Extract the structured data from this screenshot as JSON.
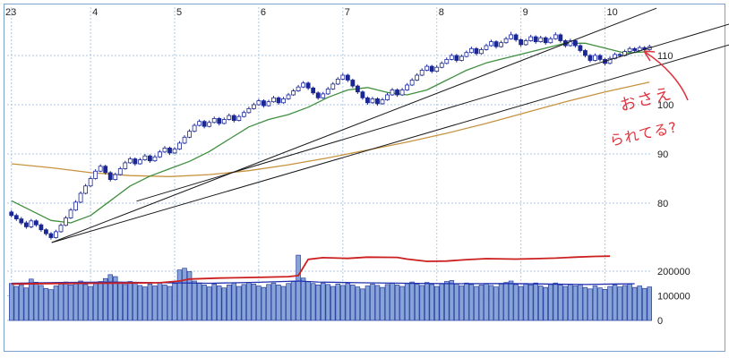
{
  "chart_data": {
    "type": "candlestick_with_volume",
    "title": "",
    "x_axis": {
      "labels": [
        "23",
        "4",
        "5",
        "6",
        "7",
        "8",
        "9",
        "10"
      ],
      "positions": [
        0,
        16,
        33,
        50,
        67,
        86,
        103,
        120
      ]
    },
    "price_axis": {
      "ticks": [
        110,
        100,
        90,
        80
      ],
      "min": 68.5,
      "max": 119.8
    },
    "volume_axis": {
      "ticks": [
        200000,
        100000,
        0
      ],
      "max": 290000
    },
    "candles": [
      [
        78.2,
        78.6,
        77.1,
        77.5
      ],
      [
        77.5,
        77.9,
        76.4,
        76.8
      ],
      [
        76.8,
        77.2,
        75.6,
        76.0
      ],
      [
        76.0,
        76.4,
        74.8,
        75.2
      ],
      [
        75.2,
        76.8,
        74.9,
        76.4
      ],
      [
        76.4,
        76.7,
        75.2,
        75.6
      ],
      [
        75.6,
        75.9,
        74.2,
        74.6
      ],
      [
        74.6,
        74.9,
        73.4,
        73.8
      ],
      [
        73.8,
        74.1,
        72.6,
        73.0
      ],
      [
        73.0,
        74.6,
        72.8,
        74.2
      ],
      [
        74.2,
        75.9,
        74.0,
        75.5
      ],
      [
        75.5,
        77.4,
        75.3,
        77.0
      ],
      [
        77.0,
        79.0,
        76.8,
        78.6
      ],
      [
        78.6,
        80.6,
        78.4,
        80.2
      ],
      [
        80.2,
        82.4,
        80.0,
        82.0
      ],
      [
        82.0,
        83.9,
        81.8,
        83.5
      ],
      [
        83.5,
        85.4,
        83.3,
        85.0
      ],
      [
        85.0,
        86.9,
        84.8,
        86.5
      ],
      [
        86.5,
        87.9,
        86.3,
        87.5
      ],
      [
        87.5,
        87.8,
        85.8,
        86.2
      ],
      [
        86.2,
        86.5,
        84.4,
        84.8
      ],
      [
        84.8,
        86.2,
        84.6,
        85.8
      ],
      [
        85.8,
        87.4,
        85.6,
        87.0
      ],
      [
        87.0,
        88.6,
        86.8,
        88.2
      ],
      [
        88.2,
        89.4,
        88.0,
        89.0
      ],
      [
        89.0,
        89.3,
        87.6,
        88.0
      ],
      [
        88.0,
        89.2,
        87.8,
        88.8
      ],
      [
        88.8,
        90.0,
        88.6,
        89.6
      ],
      [
        89.6,
        89.9,
        88.2,
        88.6
      ],
      [
        88.6,
        89.8,
        88.4,
        89.4
      ],
      [
        89.4,
        90.8,
        89.2,
        90.4
      ],
      [
        90.4,
        91.6,
        90.2,
        91.2
      ],
      [
        91.2,
        91.5,
        89.8,
        90.2
      ],
      [
        90.2,
        91.4,
        90.0,
        91.0
      ],
      [
        91.0,
        92.6,
        90.8,
        92.2
      ],
      [
        92.2,
        93.8,
        92.0,
        93.4
      ],
      [
        93.4,
        95.0,
        93.2,
        94.6
      ],
      [
        94.6,
        96.2,
        94.4,
        95.8
      ],
      [
        95.8,
        97.0,
        95.6,
        96.6
      ],
      [
        96.6,
        96.9,
        95.2,
        95.6
      ],
      [
        95.6,
        96.8,
        95.4,
        96.4
      ],
      [
        96.4,
        97.6,
        96.2,
        97.2
      ],
      [
        97.2,
        97.5,
        95.8,
        96.2
      ],
      [
        96.2,
        97.4,
        96.0,
        97.0
      ],
      [
        97.0,
        98.2,
        96.8,
        97.8
      ],
      [
        97.8,
        98.1,
        96.4,
        96.8
      ],
      [
        96.8,
        98.0,
        96.6,
        97.6
      ],
      [
        97.6,
        98.8,
        97.4,
        98.4
      ],
      [
        98.4,
        99.6,
        98.2,
        99.2
      ],
      [
        99.2,
        100.4,
        99.0,
        100.0
      ],
      [
        100.0,
        101.2,
        99.8,
        100.8
      ],
      [
        100.8,
        101.1,
        99.4,
        99.8
      ],
      [
        99.8,
        101.0,
        99.6,
        100.6
      ],
      [
        100.6,
        101.8,
        100.4,
        101.4
      ],
      [
        101.4,
        101.7,
        100.0,
        100.4
      ],
      [
        100.4,
        101.6,
        100.2,
        101.2
      ],
      [
        101.2,
        102.4,
        101.0,
        102.0
      ],
      [
        102.0,
        103.2,
        101.8,
        102.8
      ],
      [
        102.8,
        104.0,
        102.6,
        103.6
      ],
      [
        103.6,
        104.8,
        103.4,
        104.4
      ],
      [
        104.4,
        104.7,
        103.0,
        103.4
      ],
      [
        103.4,
        103.7,
        102.0,
        102.4
      ],
      [
        102.4,
        102.7,
        101.0,
        101.4
      ],
      [
        101.4,
        102.6,
        101.2,
        102.2
      ],
      [
        102.2,
        103.6,
        102.0,
        103.2
      ],
      [
        103.2,
        104.6,
        103.0,
        104.2
      ],
      [
        104.2,
        105.6,
        104.0,
        105.2
      ],
      [
        105.2,
        106.4,
        105.0,
        106.0
      ],
      [
        106.0,
        106.3,
        104.6,
        105.0
      ],
      [
        105.0,
        105.3,
        103.4,
        103.8
      ],
      [
        103.8,
        104.1,
        102.2,
        102.6
      ],
      [
        102.6,
        102.9,
        101.0,
        101.4
      ],
      [
        101.4,
        101.7,
        100.0,
        100.4
      ],
      [
        100.4,
        101.6,
        100.2,
        101.2
      ],
      [
        101.2,
        101.5,
        99.8,
        100.2
      ],
      [
        100.2,
        101.4,
        100.0,
        101.0
      ],
      [
        101.0,
        102.4,
        100.8,
        102.0
      ],
      [
        102.0,
        103.4,
        101.8,
        103.0
      ],
      [
        103.0,
        103.3,
        101.6,
        102.0
      ],
      [
        102.0,
        103.4,
        101.8,
        103.0
      ],
      [
        103.0,
        104.4,
        102.8,
        104.0
      ],
      [
        104.0,
        105.4,
        103.8,
        105.0
      ],
      [
        105.0,
        106.4,
        104.8,
        106.0
      ],
      [
        106.0,
        107.4,
        105.8,
        107.0
      ],
      [
        107.0,
        108.2,
        106.8,
        107.8
      ],
      [
        107.8,
        108.1,
        106.4,
        106.8
      ],
      [
        106.8,
        108.0,
        106.6,
        107.6
      ],
      [
        107.6,
        108.8,
        107.4,
        108.4
      ],
      [
        108.4,
        109.6,
        108.2,
        109.2
      ],
      [
        109.2,
        110.4,
        109.0,
        110.0
      ],
      [
        110.0,
        110.3,
        108.6,
        109.0
      ],
      [
        109.0,
        110.2,
        108.8,
        109.8
      ],
      [
        109.8,
        111.0,
        109.6,
        110.6
      ],
      [
        110.6,
        111.8,
        110.4,
        111.4
      ],
      [
        111.4,
        111.7,
        110.0,
        110.4
      ],
      [
        110.4,
        111.6,
        110.2,
        111.2
      ],
      [
        111.2,
        112.4,
        111.0,
        112.0
      ],
      [
        112.0,
        113.2,
        111.8,
        112.8
      ],
      [
        112.8,
        113.1,
        111.4,
        111.8
      ],
      [
        111.8,
        113.0,
        111.6,
        112.6
      ],
      [
        112.6,
        113.8,
        112.4,
        113.4
      ],
      [
        113.4,
        114.8,
        113.2,
        114.2
      ],
      [
        114.2,
        114.5,
        112.8,
        113.2
      ],
      [
        113.2,
        113.5,
        111.8,
        112.2
      ],
      [
        112.2,
        113.4,
        112.0,
        113.0
      ],
      [
        113.0,
        114.2,
        112.8,
        113.8
      ],
      [
        113.8,
        114.1,
        112.4,
        112.8
      ],
      [
        112.8,
        114.0,
        112.6,
        113.6
      ],
      [
        113.6,
        113.9,
        112.2,
        112.6
      ],
      [
        112.6,
        113.8,
        112.4,
        113.4
      ],
      [
        113.4,
        114.7,
        113.2,
        114.2
      ],
      [
        114.2,
        114.5,
        112.6,
        113.0
      ],
      [
        113.0,
        113.3,
        111.6,
        112.0
      ],
      [
        112.0,
        113.4,
        111.8,
        113.0
      ],
      [
        113.0,
        113.3,
        111.6,
        112.0
      ],
      [
        112.0,
        112.3,
        110.6,
        111.0
      ],
      [
        111.0,
        111.3,
        109.6,
        110.0
      ],
      [
        110.0,
        110.3,
        108.6,
        109.0
      ],
      [
        109.0,
        110.4,
        108.8,
        110.0
      ],
      [
        110.0,
        110.3,
        108.8,
        109.2
      ],
      [
        109.2,
        109.5,
        108.0,
        108.4
      ],
      [
        108.4,
        109.8,
        108.2,
        109.4
      ],
      [
        109.4,
        110.6,
        109.2,
        110.2
      ],
      [
        110.2,
        110.5,
        109.6,
        110.0
      ],
      [
        110.0,
        111.2,
        109.8,
        110.8
      ],
      [
        110.8,
        111.8,
        110.6,
        111.4
      ],
      [
        111.4,
        111.7,
        110.6,
        111.0
      ],
      [
        111.0,
        112.0,
        110.8,
        111.6
      ],
      [
        111.6,
        111.9,
        110.8,
        111.2
      ],
      [
        111.2,
        112.2,
        111.0,
        111.8
      ]
    ],
    "volumes": [
      150000,
      138000,
      145000,
      132000,
      168000,
      155000,
      142000,
      130000,
      125000,
      140000,
      148000,
      156000,
      144000,
      152000,
      160000,
      146000,
      138000,
      150000,
      158000,
      170000,
      186000,
      178000,
      152000,
      146000,
      158000,
      150000,
      142000,
      136000,
      148000,
      140000,
      152000,
      144000,
      138000,
      150000,
      205000,
      212000,
      198000,
      160000,
      152000,
      144000,
      136000,
      148000,
      140000,
      132000,
      144000,
      152000,
      138000,
      146000,
      154000,
      148000,
      140000,
      134000,
      146000,
      152000,
      144000,
      138000,
      150000,
      158000,
      265000,
      172000,
      158000,
      150000,
      144000,
      152000,
      146000,
      138000,
      148000,
      142000,
      150000,
      144000,
      136000,
      128000,
      140000,
      148000,
      142000,
      134000,
      146000,
      152000,
      144000,
      138000,
      150000,
      156000,
      148000,
      142000,
      154000,
      146000,
      138000,
      150000,
      158000,
      162000,
      148000,
      140000,
      152000,
      146000,
      138000,
      144000,
      150000,
      142000,
      136000,
      148000,
      154000,
      160000,
      146000,
      138000,
      150000,
      144000,
      152000,
      140000,
      134000,
      146000,
      152000,
      144000,
      138000,
      148000,
      140000,
      146000,
      134000,
      128000,
      140000,
      132000,
      126000,
      138000,
      144000,
      136000,
      142000,
      148000,
      134000,
      140000,
      130000,
      136000
    ],
    "ma_short": {
      "name": "short-term moving average",
      "points": [
        [
          0,
          80.5
        ],
        [
          4,
          78.5
        ],
        [
          8,
          76.5
        ],
        [
          12,
          76.0
        ],
        [
          16,
          77.5
        ],
        [
          20,
          80.5
        ],
        [
          24,
          83.5
        ],
        [
          28,
          85.5
        ],
        [
          32,
          87.0
        ],
        [
          36,
          88.5
        ],
        [
          40,
          90.5
        ],
        [
          44,
          93.0
        ],
        [
          48,
          95.5
        ],
        [
          52,
          97.0
        ],
        [
          56,
          98.0
        ],
        [
          60,
          99.5
        ],
        [
          64,
          101.5
        ],
        [
          68,
          103.0
        ],
        [
          72,
          103.5
        ],
        [
          76,
          102.5
        ],
        [
          80,
          102.0
        ],
        [
          84,
          103.0
        ],
        [
          88,
          105.0
        ],
        [
          92,
          107.0
        ],
        [
          96,
          108.5
        ],
        [
          100,
          109.5
        ],
        [
          104,
          110.5
        ],
        [
          108,
          111.5
        ],
        [
          112,
          112.5
        ],
        [
          116,
          112.5
        ],
        [
          120,
          111.5
        ],
        [
          124,
          110.5
        ],
        [
          129,
          110.8
        ]
      ]
    },
    "ma_long": {
      "name": "long-term moving average",
      "points": [
        [
          0,
          88.0
        ],
        [
          8,
          87.2
        ],
        [
          16,
          86.2
        ],
        [
          24,
          85.6
        ],
        [
          32,
          85.4
        ],
        [
          40,
          85.8
        ],
        [
          48,
          86.6
        ],
        [
          56,
          87.8
        ],
        [
          64,
          89.2
        ],
        [
          72,
          90.8
        ],
        [
          80,
          92.4
        ],
        [
          88,
          94.2
        ],
        [
          96,
          96.2
        ],
        [
          104,
          98.4
        ],
        [
          112,
          100.6
        ],
        [
          120,
          102.6
        ],
        [
          129,
          104.6
        ]
      ]
    },
    "trend_lines": [
      {
        "from": [
          8.15,
          72.0
        ],
        "to": [
          130.4,
          119.6
        ]
      },
      {
        "from": [
          8.15,
          72.0
        ],
        "to": [
          145.2,
          112.2
        ]
      },
      {
        "from": [
          25.3,
          80.4
        ],
        "to": [
          145.2,
          116.4
        ]
      }
    ],
    "volume_ma_red": {
      "points": [
        [
          0,
          148000
        ],
        [
          8,
          150000
        ],
        [
          16,
          151000
        ],
        [
          24,
          152000
        ],
        [
          30,
          153000
        ],
        [
          34,
          160000
        ],
        [
          36,
          168000
        ],
        [
          42,
          172000
        ],
        [
          50,
          175000
        ],
        [
          56,
          178000
        ],
        [
          58,
          182000
        ],
        [
          60,
          248000
        ],
        [
          63,
          255000
        ],
        [
          68,
          252000
        ],
        [
          72,
          257000
        ],
        [
          78,
          256000
        ],
        [
          80,
          249000
        ],
        [
          84,
          240000
        ],
        [
          88,
          241000
        ],
        [
          92,
          247000
        ],
        [
          96,
          251000
        ],
        [
          102,
          249000
        ],
        [
          106,
          251000
        ],
        [
          110,
          253000
        ],
        [
          114,
          257000
        ],
        [
          118,
          260000
        ],
        [
          121,
          261000
        ]
      ]
    },
    "volume_ma_blue": {
      "points": [
        [
          0,
          151000
        ],
        [
          10,
          154000
        ],
        [
          20,
          156000
        ],
        [
          30,
          153000
        ],
        [
          40,
          151000
        ],
        [
          50,
          155000
        ],
        [
          58,
          160000
        ],
        [
          62,
          156000
        ],
        [
          70,
          153000
        ],
        [
          80,
          151000
        ],
        [
          90,
          149000
        ],
        [
          100,
          150000
        ],
        [
          108,
          148000
        ],
        [
          116,
          146000
        ],
        [
          122,
          148000
        ],
        [
          126,
          149000
        ]
      ]
    },
    "annotation": {
      "lines": [
        "おさえ",
        "られてる?"
      ],
      "color": "#e03440"
    }
  },
  "colors": {
    "candle_up_fill": "#ffffff",
    "candle_down_fill": "#1a2796",
    "candle_outline": "#1a2796",
    "ma_short": "#3f8f3f",
    "ma_long": "#c79340",
    "volume_bar_fill": "#86a4d8",
    "volume_bar_edge": "#2a3c9e",
    "volume_ma_red": "#cc2020",
    "volume_ma_blue": "#2030b0",
    "grid": "#aec8e4",
    "frame": "#7aa0cc",
    "trend_line": "#1a1a1a",
    "axis_label": "#222222",
    "annotation": "#e03440"
  }
}
